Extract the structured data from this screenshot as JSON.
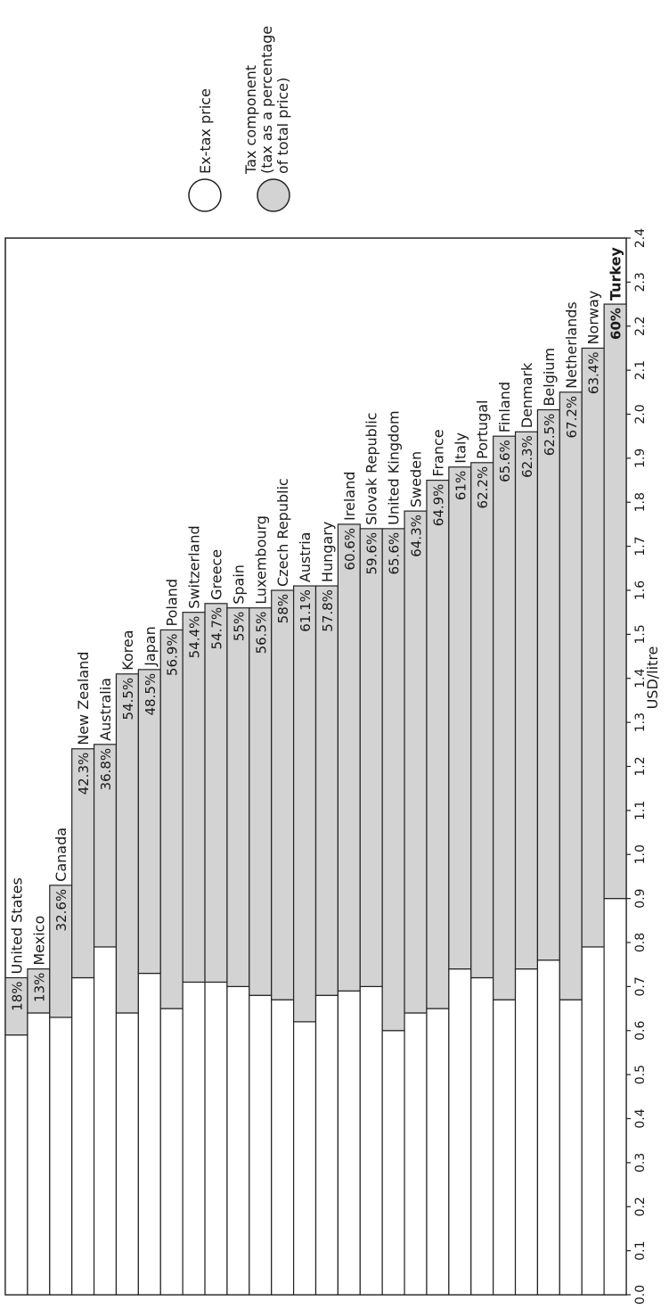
{
  "colors": {
    "ex_tax": "#ffffff",
    "tax": "#d3d3d3",
    "stroke": "#222222"
  },
  "legend": {
    "ex_tax_label": "Ex-tax price",
    "tax_label_lines": [
      "Tax component",
      "(tax as a percentage",
      "of total price)"
    ]
  },
  "chart_data": {
    "type": "bar",
    "orientation": "horizontal-stacked",
    "xlabel": "USD/litre",
    "xlim": [
      0,
      2.4
    ],
    "ticks": [
      "0.0",
      "0.1",
      "0.2",
      "0.3",
      "0.4",
      "0.5",
      "0.6",
      "0.7",
      "0.8",
      "0.9",
      "1.0",
      "1.1",
      "1.2",
      "1.3",
      "1.4",
      "1.5",
      "1.6",
      "1.7",
      "1.8",
      "1.9",
      "2.0",
      "2.1",
      "2.2",
      "2.3",
      "2.4"
    ],
    "highlight": "Turkey",
    "categories": [
      "United States",
      "Mexico",
      "Canada",
      "New Zealand",
      "Australia",
      "Korea",
      "Japan",
      "Poland",
      "Switzerland",
      "Greece",
      "Spain",
      "Luxembourg",
      "Czech Republic",
      "Austria",
      "Hungary",
      "Ireland",
      "Slovak Republic",
      "United Kingdom",
      "Sweden",
      "France",
      "Italy",
      "Portugal",
      "Finland",
      "Denmark",
      "Belgium",
      "Netherlands",
      "Norway",
      "Turkey"
    ],
    "series": [
      {
        "name": "Ex-tax price",
        "values": [
          0.59,
          0.64,
          0.63,
          0.72,
          0.79,
          0.64,
          0.73,
          0.65,
          0.71,
          0.71,
          0.7,
          0.68,
          0.67,
          0.62,
          0.68,
          0.69,
          0.7,
          0.6,
          0.64,
          0.65,
          0.74,
          0.72,
          0.67,
          0.74,
          0.76,
          0.67,
          0.79,
          0.9
        ]
      },
      {
        "name": "Tax component",
        "values": [
          0.13,
          0.1,
          0.3,
          0.52,
          0.46,
          0.77,
          0.69,
          0.86,
          0.84,
          0.86,
          0.86,
          0.88,
          0.93,
          0.99,
          0.93,
          1.06,
          1.04,
          1.14,
          1.14,
          1.2,
          1.14,
          1.17,
          1.28,
          1.22,
          1.25,
          1.38,
          1.36,
          1.35
        ]
      }
    ],
    "tax_pct_labels": [
      "18%",
      "13%",
      "32.6%",
      "42.3%",
      "36.8%",
      "54.5%",
      "48.5%",
      "56.9%",
      "54.4%",
      "54.7%",
      "55%",
      "56.5%",
      "58%",
      "61.1%",
      "57.8%",
      "60.6%",
      "59.6%",
      "65.6%",
      "64.3%",
      "64.9%",
      "61%",
      "62.2%",
      "65.6%",
      "62.3%",
      "62.5%",
      "67.2%",
      "63.4%",
      "60%"
    ]
  }
}
